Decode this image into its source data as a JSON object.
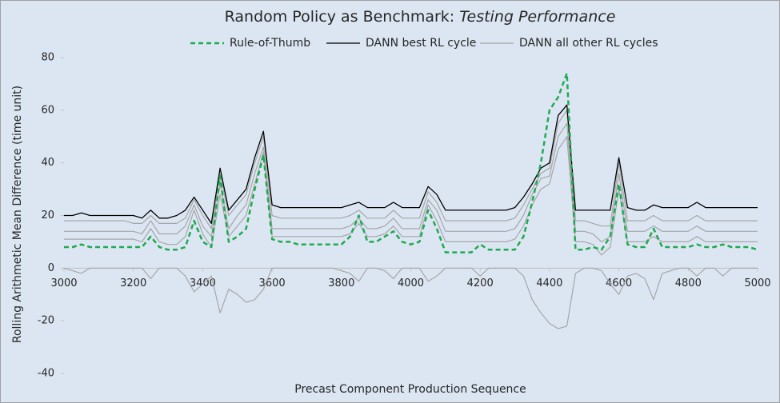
{
  "chart_data": {
    "type": "line",
    "title": "Random Policy as Benchmark:",
    "title_italic": "Testing Performance",
    "x_label": "Precast Component Production Sequence",
    "y_label": "Rolling Arithmetic Mean Difference (time unit)",
    "xlim": [
      3000,
      5000
    ],
    "xticks": [
      3000,
      3200,
      3400,
      3600,
      3800,
      4000,
      4200,
      4400,
      4600,
      4800,
      5000
    ],
    "ylim": [
      -40,
      80
    ],
    "yticks": [
      -40,
      -20,
      0,
      20,
      40,
      60,
      80
    ],
    "x": [
      3000,
      3025,
      3050,
      3075,
      3100,
      3125,
      3150,
      3175,
      3200,
      3225,
      3250,
      3275,
      3300,
      3325,
      3350,
      3375,
      3400,
      3425,
      3450,
      3475,
      3500,
      3525,
      3550,
      3575,
      3600,
      3625,
      3650,
      3675,
      3700,
      3725,
      3750,
      3775,
      3800,
      3825,
      3850,
      3875,
      3900,
      3925,
      3950,
      3975,
      4000,
      4025,
      4050,
      4075,
      4100,
      4125,
      4150,
      4175,
      4200,
      4225,
      4250,
      4275,
      4300,
      4325,
      4350,
      4375,
      4400,
      4425,
      4450,
      4475,
      4500,
      4525,
      4550,
      4575,
      4600,
      4625,
      4650,
      4675,
      4700,
      4725,
      4750,
      4775,
      4800,
      4825,
      4850,
      4875,
      4900,
      4925,
      4950,
      4975,
      5000
    ],
    "series": [
      {
        "name": "Rule-of-Thumb",
        "color": "#1eaa50",
        "dashed": true,
        "values": [
          8,
          8,
          9,
          8,
          8,
          8,
          8,
          8,
          8,
          8,
          12,
          8,
          7,
          7,
          8,
          18,
          10,
          8,
          35,
          10,
          12,
          15,
          30,
          43,
          11,
          10,
          10,
          9,
          9,
          9,
          9,
          9,
          9,
          12,
          20,
          10,
          10,
          12,
          14,
          10,
          9,
          10,
          22,
          15,
          6,
          6,
          6,
          6,
          9,
          7,
          7,
          7,
          7,
          12,
          25,
          40,
          60,
          65,
          74,
          7,
          7,
          8,
          7,
          12,
          32,
          9,
          8,
          8,
          15,
          8,
          8,
          8,
          8,
          9,
          8,
          8,
          9,
          8,
          8,
          8,
          7
        ]
      },
      {
        "name": "DANN best RL cycle",
        "color": "#000000",
        "dashed": false,
        "values": [
          20,
          20,
          21,
          20,
          20,
          20,
          20,
          20,
          20,
          19,
          22,
          19,
          19,
          20,
          22,
          27,
          22,
          17,
          38,
          22,
          26,
          30,
          42,
          52,
          24,
          23,
          23,
          23,
          23,
          23,
          23,
          23,
          23,
          24,
          25,
          23,
          23,
          23,
          25,
          23,
          23,
          23,
          31,
          28,
          22,
          22,
          22,
          22,
          22,
          22,
          22,
          22,
          23,
          27,
          32,
          38,
          40,
          58,
          62,
          22,
          22,
          22,
          22,
          22,
          42,
          23,
          22,
          22,
          24,
          23,
          23,
          23,
          23,
          25,
          23,
          23,
          23,
          23,
          23,
          23,
          23
        ]
      },
      {
        "name": "DANN all other RL cycles",
        "color": "#a6a6a6",
        "dashed": false,
        "values": [
          [
            18,
            18,
            18,
            18,
            18,
            18,
            18,
            18,
            17,
            17,
            20,
            17,
            17,
            17,
            19,
            26,
            20,
            15,
            36,
            20,
            24,
            28,
            40,
            50,
            20,
            19,
            19,
            19,
            19,
            19,
            19,
            19,
            19,
            20,
            22,
            19,
            19,
            19,
            22,
            19,
            19,
            19,
            29,
            25,
            18,
            18,
            18,
            18,
            18,
            18,
            18,
            18,
            19,
            24,
            30,
            36,
            38,
            55,
            60,
            18,
            18,
            17,
            16,
            16,
            40,
            18,
            18,
            18,
            20,
            18,
            18,
            18,
            18,
            20,
            18,
            18,
            18,
            18,
            18,
            18,
            18
          ],
          [
            14,
            14,
            14,
            14,
            14,
            14,
            14,
            14,
            14,
            13,
            18,
            13,
            13,
            13,
            16,
            24,
            16,
            12,
            32,
            15,
            20,
            24,
            36,
            46,
            15,
            15,
            15,
            15,
            15,
            15,
            15,
            15,
            15,
            16,
            19,
            15,
            15,
            16,
            19,
            15,
            15,
            15,
            26,
            22,
            14,
            14,
            14,
            14,
            14,
            14,
            14,
            14,
            15,
            20,
            28,
            34,
            35,
            50,
            55,
            14,
            14,
            13,
            10,
            12,
            36,
            14,
            14,
            14,
            16,
            14,
            14,
            14,
            14,
            16,
            14,
            14,
            14,
            14,
            14,
            14,
            14
          ],
          [
            11,
            11,
            11,
            11,
            11,
            11,
            11,
            11,
            11,
            10,
            15,
            10,
            9,
            9,
            12,
            22,
            13,
            8,
            28,
            12,
            16,
            20,
            32,
            44,
            12,
            12,
            12,
            12,
            12,
            12,
            12,
            12,
            12,
            13,
            17,
            12,
            12,
            13,
            16,
            12,
            12,
            12,
            24,
            18,
            10,
            10,
            10,
            10,
            10,
            10,
            10,
            10,
            11,
            16,
            24,
            30,
            32,
            45,
            50,
            10,
            10,
            9,
            5,
            8,
            30,
            10,
            10,
            10,
            12,
            10,
            10,
            10,
            10,
            12,
            10,
            10,
            10,
            10,
            10,
            10,
            10
          ],
          [
            0,
            -1,
            -2,
            0,
            0,
            0,
            0,
            0,
            0,
            0,
            -4,
            0,
            0,
            0,
            -3,
            -9,
            -6,
            -3,
            -17,
            -8,
            -10,
            -13,
            -12,
            -8,
            0,
            0,
            0,
            0,
            0,
            0,
            0,
            0,
            -1,
            -2,
            -5,
            0,
            0,
            -1,
            -4,
            0,
            0,
            0,
            -5,
            -3,
            0,
            0,
            0,
            0,
            -3,
            0,
            0,
            0,
            0,
            -3,
            -12,
            -17,
            -21,
            -23,
            -22,
            -2,
            0,
            0,
            -1,
            -6,
            -10,
            -3,
            -2,
            -4,
            -12,
            -2,
            -1,
            0,
            0,
            -3,
            0,
            0,
            -3,
            0,
            0,
            0,
            0
          ]
        ]
      }
    ]
  }
}
